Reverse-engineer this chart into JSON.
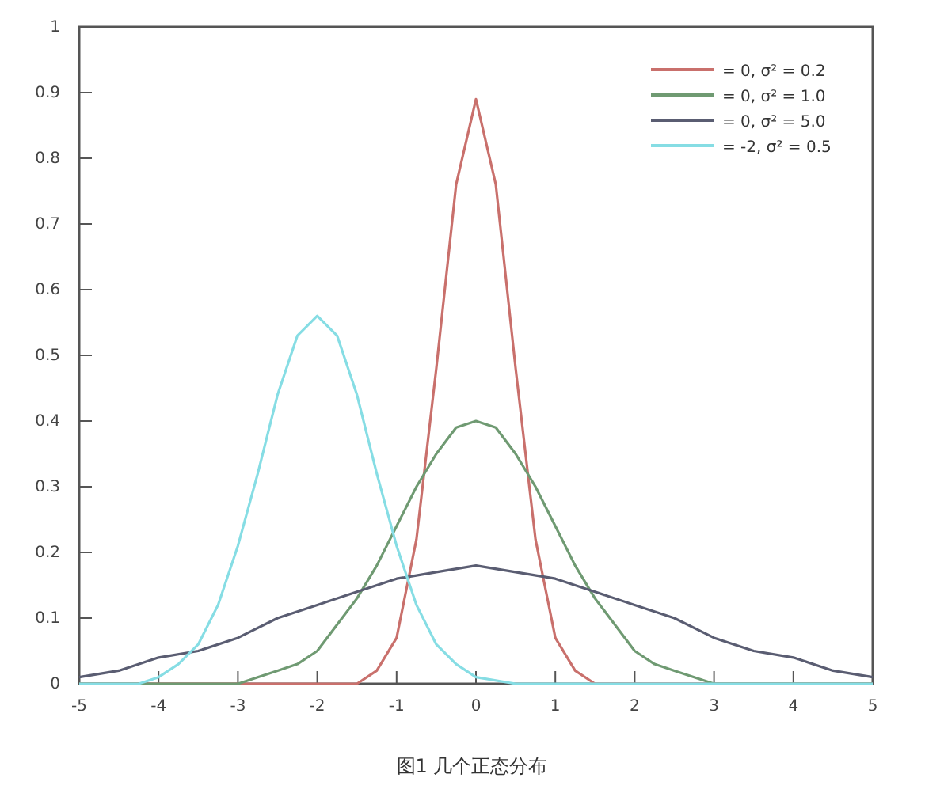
{
  "chart_data": {
    "type": "line",
    "title": "图1  几个正态分布",
    "xlim": [
      -5,
      5
    ],
    "xticks": [
      -5,
      -4,
      -3,
      -2,
      -1,
      0,
      1,
      2,
      3,
      4,
      5
    ],
    "ylim": [
      0,
      1
    ],
    "yticks": [
      0,
      0.1,
      0.2,
      0.3,
      0.4,
      0.5,
      0.6,
      0.7,
      0.8,
      0.9,
      1
    ],
    "grid": false,
    "legend": "top right",
    "marker": "none",
    "line_style": "solid",
    "series": [
      {
        "name": "= 0, σ² = 0.2",
        "color": "#c9706c",
        "x": [
          -5,
          -2,
          -1.5,
          -1.25,
          -1,
          -0.75,
          -0.5,
          -0.25,
          0,
          0.25,
          0.5,
          0.75,
          1,
          1.25,
          1.5,
          2,
          5
        ],
        "values": [
          0,
          0,
          0,
          0.02,
          0.07,
          0.22,
          0.48,
          0.76,
          0.89,
          0.76,
          0.48,
          0.22,
          0.07,
          0.02,
          0,
          0,
          0
        ]
      },
      {
        "name": "= 0, σ² = 1.0",
        "color": "#6f9a72",
        "x": [
          -5,
          -3.5,
          -3,
          -2.75,
          -2.5,
          -2.25,
          -2,
          -1.75,
          -1.5,
          -1.25,
          -1,
          -0.75,
          -0.5,
          -0.25,
          0,
          0.25,
          0.5,
          0.75,
          1,
          1.25,
          1.5,
          1.75,
          2,
          2.25,
          2.5,
          2.75,
          3,
          3.5,
          5
        ],
        "values": [
          0,
          0,
          0,
          0.01,
          0.02,
          0.03,
          0.05,
          0.09,
          0.13,
          0.18,
          0.24,
          0.3,
          0.35,
          0.39,
          0.4,
          0.39,
          0.35,
          0.3,
          0.24,
          0.18,
          0.13,
          0.09,
          0.05,
          0.03,
          0.02,
          0.01,
          0,
          0,
          0
        ]
      },
      {
        "name": "= 0, σ² = 5.0",
        "color": "#5a5d72",
        "x": [
          -5,
          -4.5,
          -4,
          -3.5,
          -3,
          -2.5,
          -2,
          -1.5,
          -1,
          -0.5,
          0,
          0.5,
          1,
          1.5,
          2,
          2.5,
          3,
          3.5,
          4,
          4.5,
          5
        ],
        "values": [
          0.01,
          0.02,
          0.04,
          0.05,
          0.07,
          0.1,
          0.12,
          0.14,
          0.16,
          0.17,
          0.18,
          0.17,
          0.16,
          0.14,
          0.12,
          0.1,
          0.07,
          0.05,
          0.04,
          0.02,
          0.01
        ]
      },
      {
        "name": "= -2, σ² = 0.5",
        "color": "#86dde4",
        "x": [
          -5,
          -4.5,
          -4.25,
          -4,
          -3.75,
          -3.5,
          -3.25,
          -3,
          -2.75,
          -2.5,
          -2.25,
          -2,
          -1.75,
          -1.5,
          -1.25,
          -1,
          -0.75,
          -0.5,
          -0.25,
          0,
          0.5,
          5
        ],
        "values": [
          0,
          0,
          0,
          0.01,
          0.03,
          0.06,
          0.12,
          0.21,
          0.32,
          0.44,
          0.53,
          0.56,
          0.53,
          0.44,
          0.32,
          0.21,
          0.12,
          0.06,
          0.03,
          0.01,
          0,
          0
        ]
      }
    ]
  }
}
